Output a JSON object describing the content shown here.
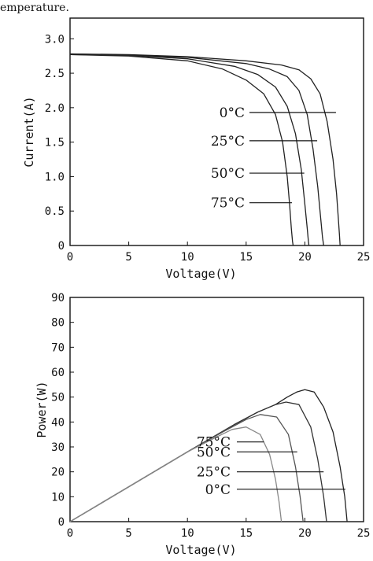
{
  "caption": "emperature.",
  "chart_data": [
    {
      "type": "line",
      "xlabel": "Voltage(V)",
      "ylabel": "Current(A)",
      "xlim": [
        0,
        25
      ],
      "ylim": [
        0,
        3.3
      ],
      "xticks": [
        "0",
        "5",
        "10",
        "15",
        "20",
        "25"
      ],
      "yticks": [
        "0",
        "0.5",
        "1.0",
        "1.5",
        "2.0",
        "2.5",
        "3.0"
      ],
      "xtick_values": [
        0,
        5,
        10,
        15,
        20,
        25
      ],
      "ytick_values": [
        0,
        0.5,
        1.0,
        1.5,
        2.0,
        2.5,
        3.0
      ],
      "series": [
        {
          "name": "0°C",
          "color": "#222222",
          "x": [
            0,
            5,
            10,
            15,
            18,
            19.5,
            20.5,
            21.3,
            21.9,
            22.4,
            22.7,
            22.85,
            22.95,
            23.0
          ],
          "y": [
            2.78,
            2.77,
            2.74,
            2.68,
            2.62,
            2.55,
            2.42,
            2.2,
            1.8,
            1.25,
            0.75,
            0.4,
            0.15,
            0.0
          ]
        },
        {
          "name": "25°C",
          "color": "#222222",
          "x": [
            0,
            5,
            10,
            15,
            17,
            18.5,
            19.5,
            20.2,
            20.7,
            21.1,
            21.35,
            21.5,
            21.6
          ],
          "y": [
            2.78,
            2.76,
            2.73,
            2.64,
            2.56,
            2.45,
            2.25,
            1.9,
            1.4,
            0.85,
            0.4,
            0.12,
            0.0
          ]
        },
        {
          "name": "50°C",
          "color": "#222222",
          "x": [
            0,
            5,
            10,
            14,
            16,
            17.5,
            18.5,
            19.2,
            19.7,
            20.0,
            20.2,
            20.3,
            20.35
          ],
          "y": [
            2.77,
            2.76,
            2.71,
            2.6,
            2.48,
            2.3,
            2.02,
            1.62,
            1.1,
            0.6,
            0.25,
            0.06,
            0.0
          ]
        },
        {
          "name": "75°C",
          "color": "#222222",
          "x": [
            0,
            5,
            10,
            13,
            15,
            16.5,
            17.5,
            18.1,
            18.5,
            18.7,
            18.85,
            18.95,
            19.0
          ],
          "y": [
            2.77,
            2.75,
            2.68,
            2.56,
            2.4,
            2.2,
            1.9,
            1.5,
            1.0,
            0.6,
            0.25,
            0.06,
            0.0
          ]
        }
      ],
      "annotations": [
        {
          "text": "0°C",
          "at_x": 22.65,
          "at_y": 1.93
        },
        {
          "text": "25°C",
          "at_x": 21.05,
          "at_y": 1.52
        },
        {
          "text": "50°C",
          "at_x": 19.95,
          "at_y": 1.05
        },
        {
          "text": "75°C",
          "at_x": 18.9,
          "at_y": 0.62
        }
      ],
      "grid": false
    },
    {
      "type": "line",
      "xlabel": "Voltage(V)",
      "ylabel": "Power(W)",
      "xlim": [
        0,
        25
      ],
      "ylim": [
        0,
        90
      ],
      "xticks": [
        "0",
        "5",
        "10",
        "15",
        "20",
        "25"
      ],
      "yticks": [
        "0",
        "10",
        "20",
        "30",
        "40",
        "50",
        "60",
        "70",
        "80",
        "90"
      ],
      "xtick_values": [
        0,
        5,
        10,
        15,
        20,
        25
      ],
      "ytick_values": [
        0,
        10,
        20,
        30,
        40,
        50,
        60,
        70,
        80,
        90
      ],
      "series": [
        {
          "name": "0°C",
          "color": "#222222",
          "x": [
            0,
            5,
            10,
            14,
            16,
            17.5,
            18.5,
            19.3,
            20.0,
            20.8,
            21.6,
            22.4,
            23.0,
            23.4,
            23.6
          ],
          "y": [
            0,
            14,
            28,
            39,
            44,
            47,
            50,
            52,
            53,
            52,
            46,
            36,
            22,
            10,
            0
          ]
        },
        {
          "name": "25°C",
          "color": "#333333",
          "x": [
            0,
            5,
            10,
            14,
            16,
            17.5,
            18.4,
            19.5,
            20.5,
            21.1,
            21.6,
            21.85
          ],
          "y": [
            0,
            14,
            28,
            39,
            44,
            47,
            48,
            47,
            38,
            25,
            10,
            0
          ]
        },
        {
          "name": "50°C",
          "color": "#555555",
          "x": [
            0,
            5,
            10,
            13,
            15,
            16.2,
            17.6,
            18.6,
            19.2,
            19.6,
            19.85
          ],
          "y": [
            0,
            14,
            28,
            36,
            41,
            43,
            42,
            35,
            22,
            10,
            0
          ]
        },
        {
          "name": "75°C",
          "color": "#888888",
          "x": [
            0,
            5,
            10,
            12.5,
            13.8,
            15.0,
            16.2,
            17.0,
            17.5,
            17.8,
            18.0
          ],
          "y": [
            0,
            14,
            28,
            34,
            37,
            38,
            35,
            27,
            17,
            8,
            0
          ]
        }
      ],
      "annotations": [
        {
          "text": "75°C",
          "at_x": 16.5,
          "at_y": 32
        },
        {
          "text": "50°C",
          "at_x": 19.35,
          "at_y": 28
        },
        {
          "text": "25°C",
          "at_x": 21.6,
          "at_y": 20
        },
        {
          "text": "0°C",
          "at_x": 23.45,
          "at_y": 13
        }
      ],
      "grid": false
    }
  ]
}
